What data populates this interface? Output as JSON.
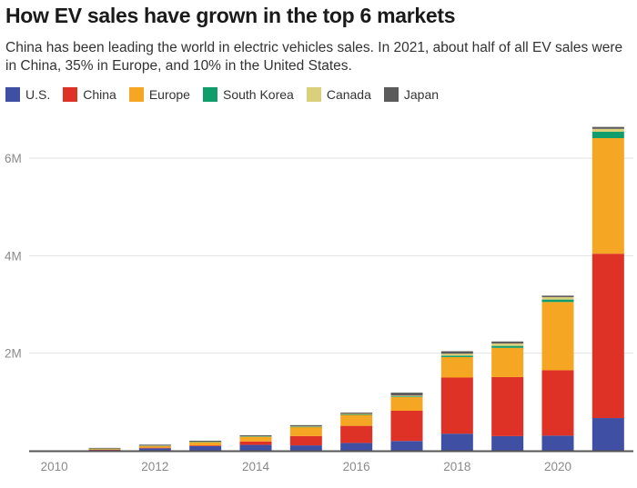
{
  "header": {
    "title": "How EV sales have grown in the top 6 markets",
    "subtitle": "China has been leading the world in electric vehicles sales. In 2021, about half of all EV sales were in China, 35% in Europe, and 10% in the United States."
  },
  "chart_data": {
    "type": "bar",
    "stacked": true,
    "title": "How EV sales have grown in the top 6 markets",
    "subtitle": "China has been leading the world in electric vehicles sales. In 2021, about half of all EV sales were in China, 35% in Europe, and 10% in the United States.",
    "xlabel": "",
    "ylabel": "",
    "categories": [
      "2010",
      "2011",
      "2012",
      "2013",
      "2014",
      "2015",
      "2016",
      "2017",
      "2018",
      "2019",
      "2020",
      "2021"
    ],
    "x_tick_labels": [
      "2010",
      "2012",
      "2014",
      "2016",
      "2018",
      "2020"
    ],
    "y_ticks": [
      {
        "value": 2000000,
        "label": "2M"
      },
      {
        "value": 4000000,
        "label": "4M"
      },
      {
        "value": 6000000,
        "label": "6M"
      }
    ],
    "ylim": [
      0,
      6700000
    ],
    "grid": true,
    "legend_position": "top-left",
    "series": [
      {
        "name": "U.S.",
        "color": "#3f4fa3",
        "values": [
          0,
          18000,
          50000,
          95000,
          120000,
          110000,
          160000,
          200000,
          350000,
          300000,
          310000,
          670000
        ]
      },
      {
        "name": "China",
        "color": "#de3227",
        "values": [
          0,
          5000,
          12000,
          15000,
          70000,
          190000,
          350000,
          620000,
          1150000,
          1210000,
          1340000,
          3370000
        ]
      },
      {
        "name": "Europe",
        "color": "#f5a623",
        "values": [
          0,
          20000,
          40000,
          70000,
          100000,
          190000,
          230000,
          280000,
          420000,
          600000,
          1400000,
          2370000
        ]
      },
      {
        "name": "South Korea",
        "color": "#0f9d6b",
        "values": [
          0,
          1000,
          1000,
          2000,
          2000,
          3000,
          5000,
          14000,
          30000,
          40000,
          50000,
          130000
        ]
      },
      {
        "name": "Canada",
        "color": "#dccf7c",
        "values": [
          0,
          1000,
          2000,
          3000,
          5000,
          7000,
          12000,
          17000,
          40000,
          50000,
          50000,
          60000
        ]
      },
      {
        "name": "Japan",
        "color": "#5b5b5b",
        "values": [
          0,
          13000,
          20000,
          20000,
          20000,
          25000,
          25000,
          60000,
          50000,
          40000,
          30000,
          40000
        ]
      }
    ]
  }
}
